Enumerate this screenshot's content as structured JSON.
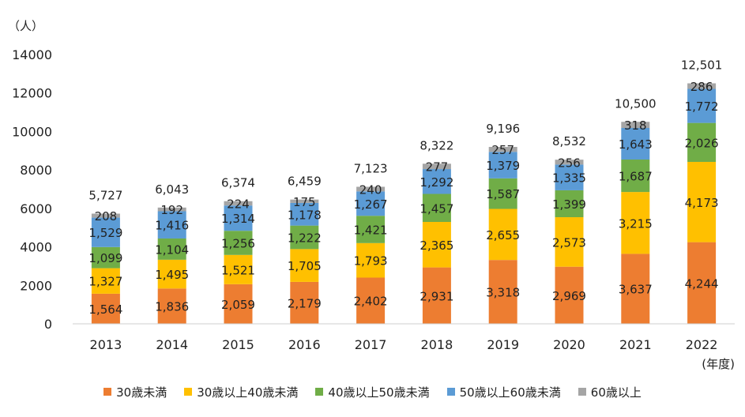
{
  "chart_data": {
    "type": "bar",
    "stacked": true,
    "y_unit_label": "（人）",
    "x_unit_label": "(年度)",
    "ylim": [
      0,
      14000
    ],
    "yticks": [
      0,
      2000,
      4000,
      6000,
      8000,
      10000,
      12000,
      14000
    ],
    "categories": [
      "2013",
      "2014",
      "2015",
      "2016",
      "2017",
      "2018",
      "2019",
      "2020",
      "2021",
      "2022"
    ],
    "series": [
      {
        "name": "30歳未満",
        "color": "#ED7D31",
        "values": [
          1564,
          1836,
          2059,
          2179,
          2402,
          2931,
          3318,
          2969,
          3637,
          4244
        ],
        "labels": [
          "1,564",
          "1,836",
          "2,059",
          "2,179",
          "2,402",
          "2,931",
          "3,318",
          "2,969",
          "3,637",
          "4,244"
        ]
      },
      {
        "name": "30歳以上40歳未満",
        "color": "#FFC000",
        "values": [
          1327,
          1495,
          1521,
          1705,
          1793,
          2365,
          2655,
          2573,
          3215,
          4173
        ],
        "labels": [
          "1,327",
          "1,495",
          "1,521",
          "1,705",
          "1,793",
          "2,365",
          "2,655",
          "2,573",
          "3,215",
          "4,173"
        ]
      },
      {
        "name": "40歳以上50歳未満",
        "color": "#70AD47",
        "values": [
          1099,
          1104,
          1256,
          1222,
          1421,
          1457,
          1587,
          1399,
          1687,
          2026
        ],
        "labels": [
          "1,099",
          "1,104",
          "1,256",
          "1,222",
          "1,421",
          "1,457",
          "1,587",
          "1,399",
          "1,687",
          "2,026"
        ]
      },
      {
        "name": "50歳以上60歳未満",
        "color": "#5B9BD5",
        "values": [
          1529,
          1416,
          1314,
          1178,
          1267,
          1292,
          1379,
          1335,
          1643,
          1772
        ],
        "labels": [
          "1,529",
          "1,416",
          "1,314",
          "1,178",
          "1,267",
          "1,292",
          "1,379",
          "1,335",
          "1,643",
          "1,772"
        ]
      },
      {
        "name": "60歳以上",
        "color": "#A5A5A5",
        "values": [
          208,
          192,
          224,
          175,
          240,
          277,
          257,
          256,
          318,
          286
        ],
        "labels": [
          "208",
          "192",
          "224",
          "175",
          "240",
          "277",
          "257",
          "256",
          "318",
          "286"
        ]
      }
    ],
    "totals": [
      5727,
      6043,
      6374,
      6459,
      7123,
      8322,
      9196,
      8532,
      10500,
      12501
    ],
    "total_labels": [
      "5,727",
      "6,043",
      "6,374",
      "6,459",
      "7,123",
      "8,322",
      "9,196",
      "8,532",
      "10,500",
      "12,501"
    ],
    "legend_position": "bottom",
    "grid": false
  }
}
